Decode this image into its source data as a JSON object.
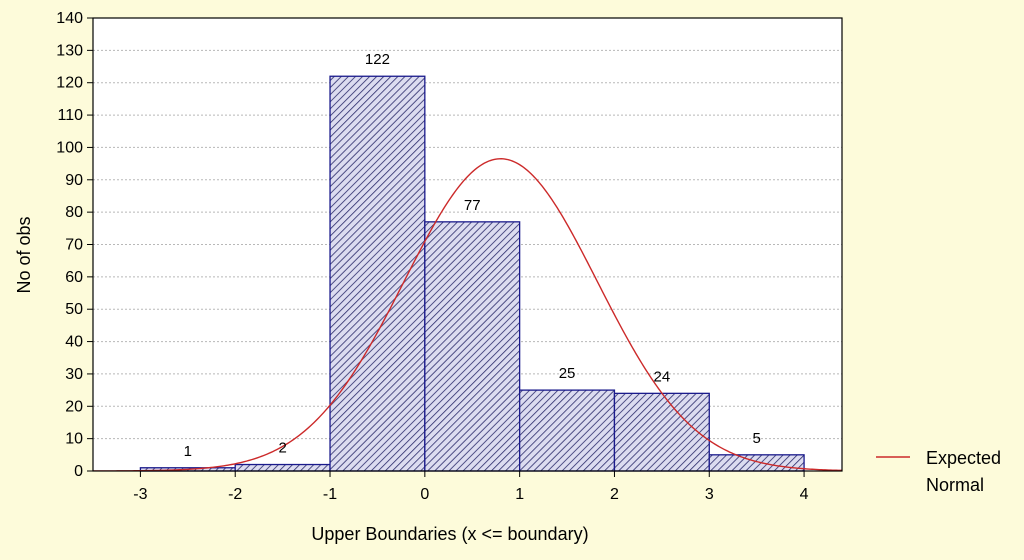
{
  "chart_data": {
    "type": "bar",
    "xlabel": "Upper Boundaries (x <= boundary)",
    "ylabel": "No of obs",
    "ylim": [
      0,
      140
    ],
    "yticks": [
      0,
      10,
      20,
      30,
      40,
      50,
      60,
      70,
      80,
      90,
      100,
      110,
      120,
      130,
      140
    ],
    "xlim": [
      -3.5,
      4.4
    ],
    "xticks": [
      -3,
      -2,
      -1,
      0,
      1,
      2,
      3,
      4
    ],
    "bins": [
      {
        "from": -3,
        "to": -2,
        "value": 1
      },
      {
        "from": -2,
        "to": -1,
        "value": 2
      },
      {
        "from": -1,
        "to": 0,
        "value": 122
      },
      {
        "from": 0,
        "to": 1,
        "value": 77
      },
      {
        "from": 1,
        "to": 2,
        "value": 25
      },
      {
        "from": 2,
        "to": 3,
        "value": 24
      },
      {
        "from": 3,
        "to": 4,
        "value": 5
      }
    ],
    "bar_labels": [
      "1",
      "2",
      "122",
      "77",
      "25",
      "24",
      "5"
    ],
    "series": [
      {
        "name": "Expected Normal",
        "type": "line",
        "mean": 0.8,
        "peak": 96.5,
        "sd": 1.02
      }
    ],
    "legend": {
      "labels": [
        "Expected",
        "Normal"
      ],
      "position": "right"
    },
    "grid": true,
    "colors": {
      "bar_fill": "#dcdcf0",
      "bar_stroke": "#1a1a8c",
      "hatch": "#2a2a6a",
      "curve": "#cc2a2a",
      "plot_bg": "#ffffff",
      "page_bg": "#fdfbda",
      "grid": "#b8b8b8"
    }
  }
}
